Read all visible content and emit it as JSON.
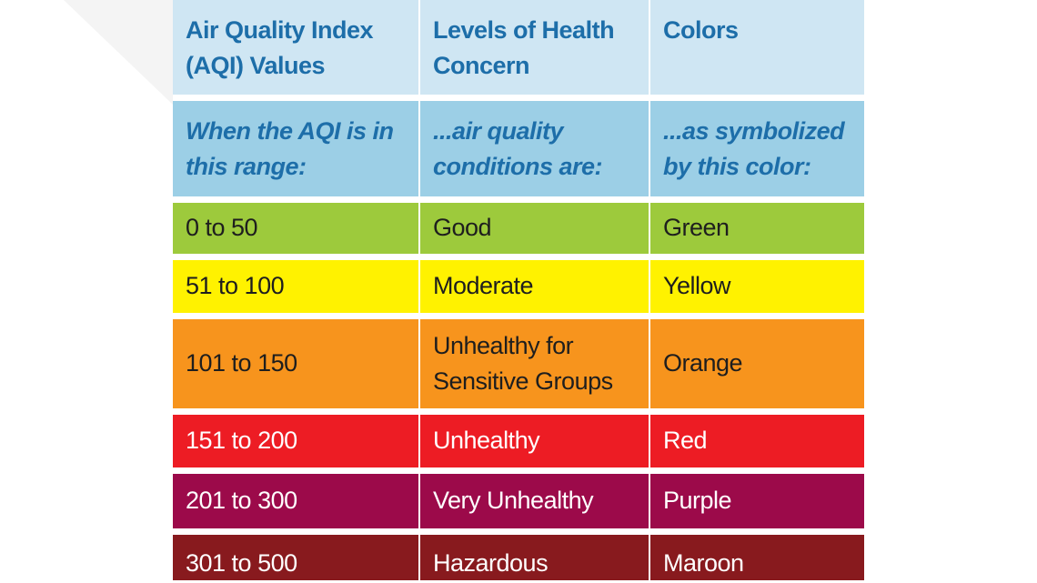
{
  "header": {
    "col1": "Air Quality Index (AQI) Values",
    "col2": "Levels of Health Concern",
    "col3": "Colors"
  },
  "subheader": {
    "col1": "When the AQI is in this range:",
    "col2": "...air quality conditions are:",
    "col3": "...as symbolized by this color:"
  },
  "rows": [
    {
      "range": "0 to 50",
      "level": "Good",
      "color": "Green",
      "bg": "#9dca3c",
      "text": "#1e1e1e"
    },
    {
      "range": "51 to 100",
      "level": "Moderate",
      "color": "Yellow",
      "bg": "#fff200",
      "text": "#1e1e1e"
    },
    {
      "range": "101 to 150",
      "level": "Unhealthy for Sensitive Groups",
      "color": "Orange",
      "bg": "#f7941d",
      "text": "#1e1e1e"
    },
    {
      "range": "151 to 200",
      "level": "Unhealthy",
      "color": "Red",
      "bg": "#ed1c24",
      "text": "#ffffff"
    },
    {
      "range": "201 to 300",
      "level": "Very Unhealthy",
      "color": "Purple",
      "bg": "#9c0a4a",
      "text": "#ffffff"
    },
    {
      "range": "301 to 500",
      "level": "Hazardous",
      "color": "Maroon",
      "bg": "#881a1e",
      "text": "#ffffff"
    }
  ]
}
